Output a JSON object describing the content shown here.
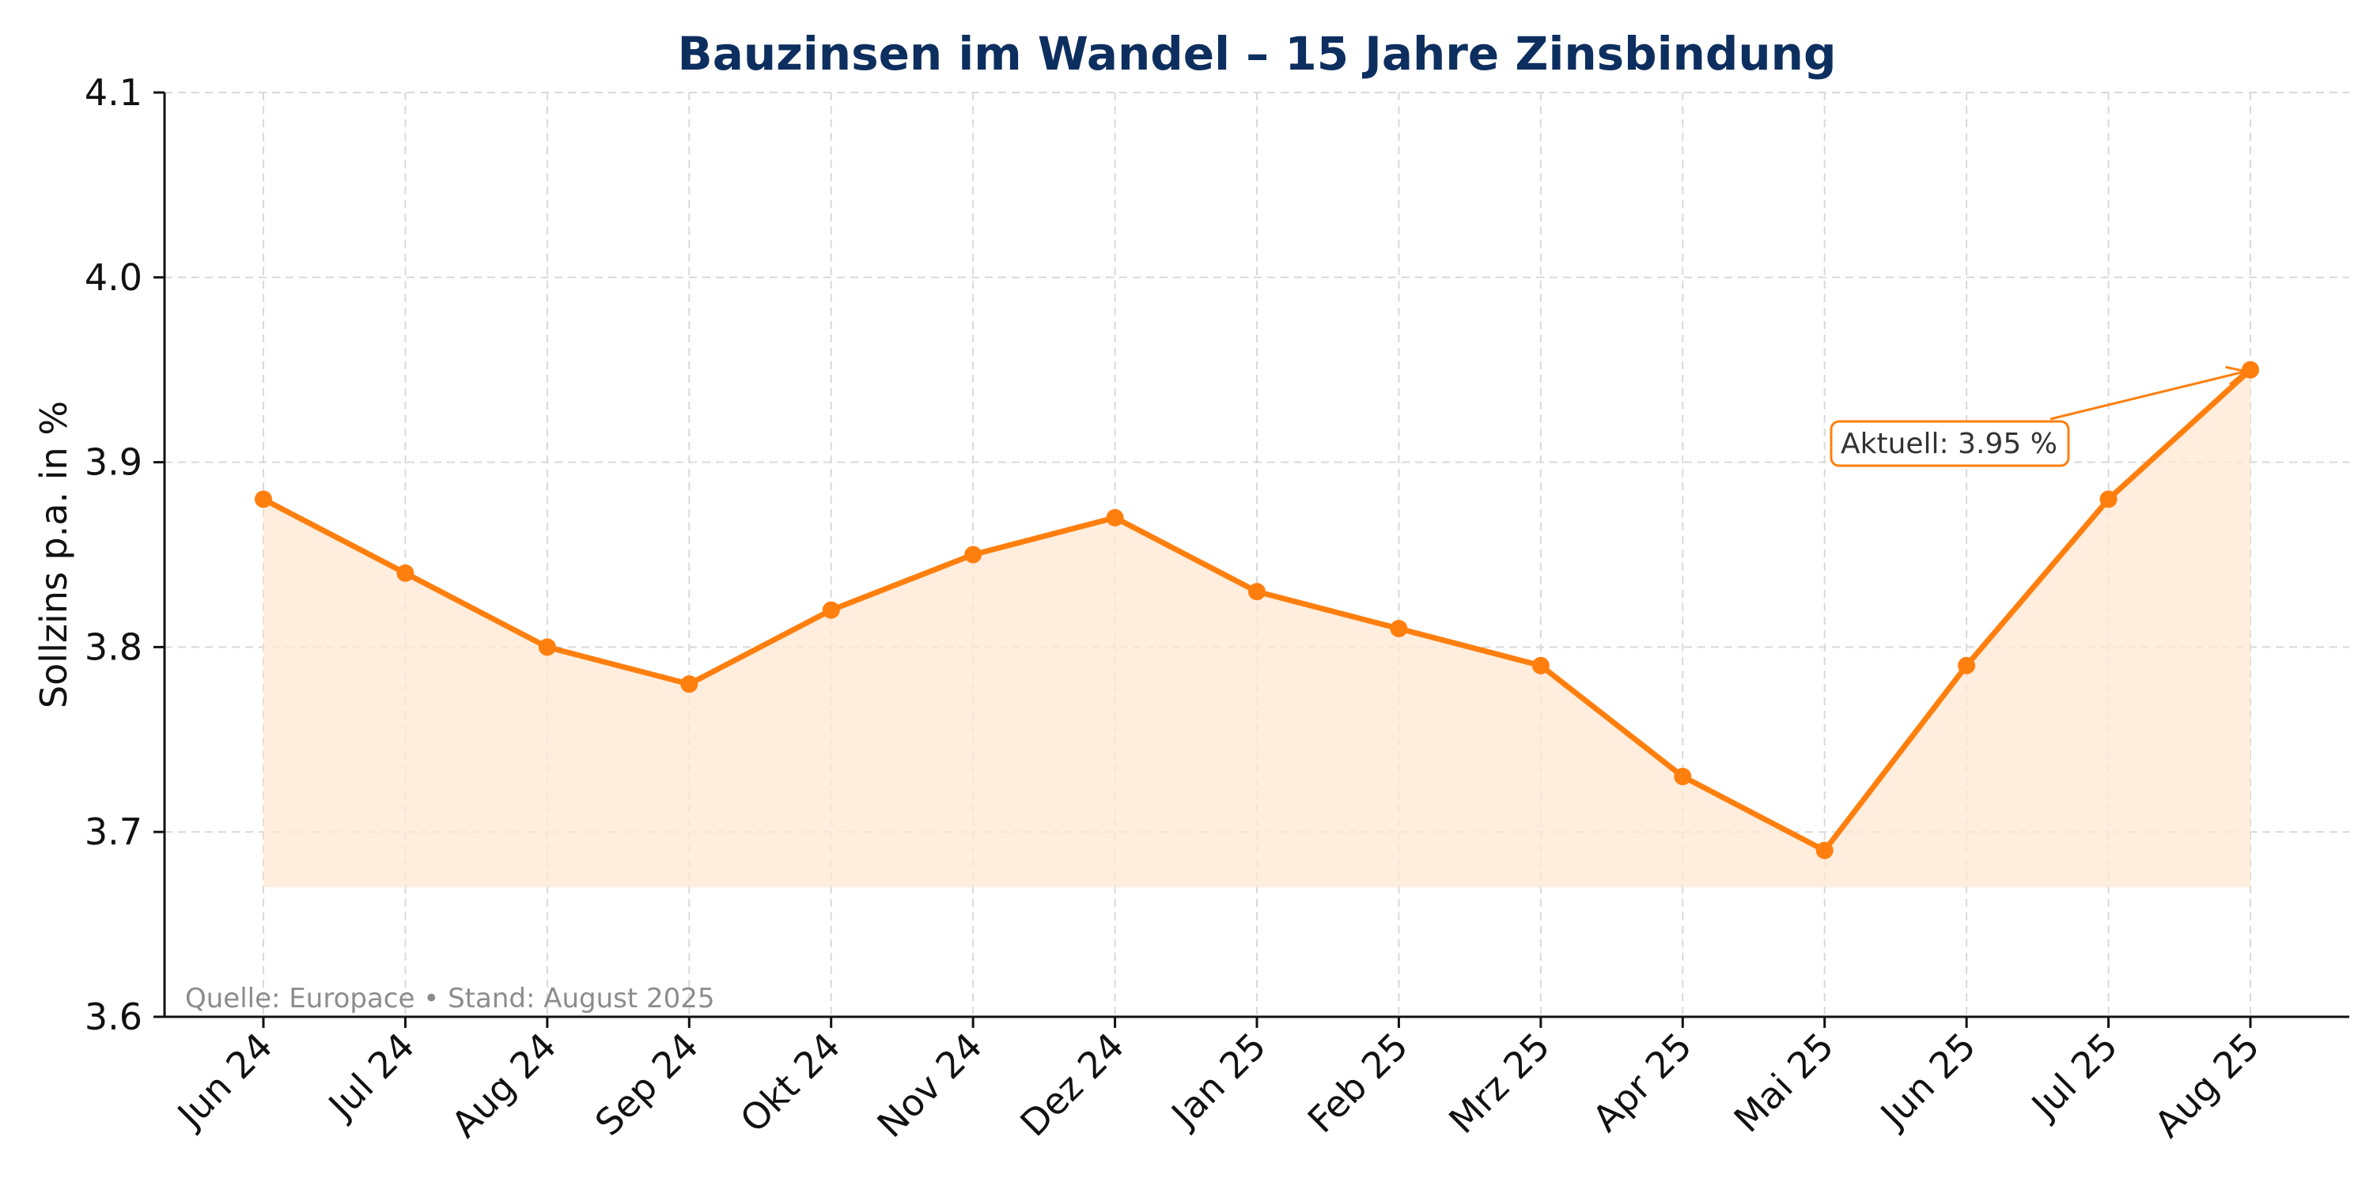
{
  "chart_data": {
    "type": "line",
    "title": "Bauzinsen im Wandel – 15 Jahre Zinsbindung",
    "xlabel": "",
    "ylabel": "Sollzins p.a. in %",
    "categories": [
      "Jun 24",
      "Jul 24",
      "Aug 24",
      "Sep 24",
      "Okt 24",
      "Nov 24",
      "Dez 24",
      "Jan 25",
      "Feb 25",
      "Mrz 25",
      "Apr 25",
      "Mai 25",
      "Jun 25",
      "Jul 25",
      "Aug 25"
    ],
    "series": [
      {
        "values": [
          3.88,
          3.84,
          3.8,
          3.78,
          3.82,
          3.85,
          3.87,
          3.83,
          3.81,
          3.79,
          3.73,
          3.69,
          3.79,
          3.88,
          3.95
        ],
        "color": "#ff7f0e"
      }
    ],
    "fill_baseline": 3.67,
    "fill_color": "#ffe7d1",
    "ylim": [
      3.6,
      4.1
    ],
    "yticks": [
      "3.6",
      "3.7",
      "3.8",
      "3.9",
      "4.0",
      "4.1"
    ],
    "grid": true,
    "annotation": {
      "text": "Aktuell: 3.95 %",
      "target_index": 14
    },
    "source_note": "Quelle: Europace • Stand: August 2025"
  }
}
